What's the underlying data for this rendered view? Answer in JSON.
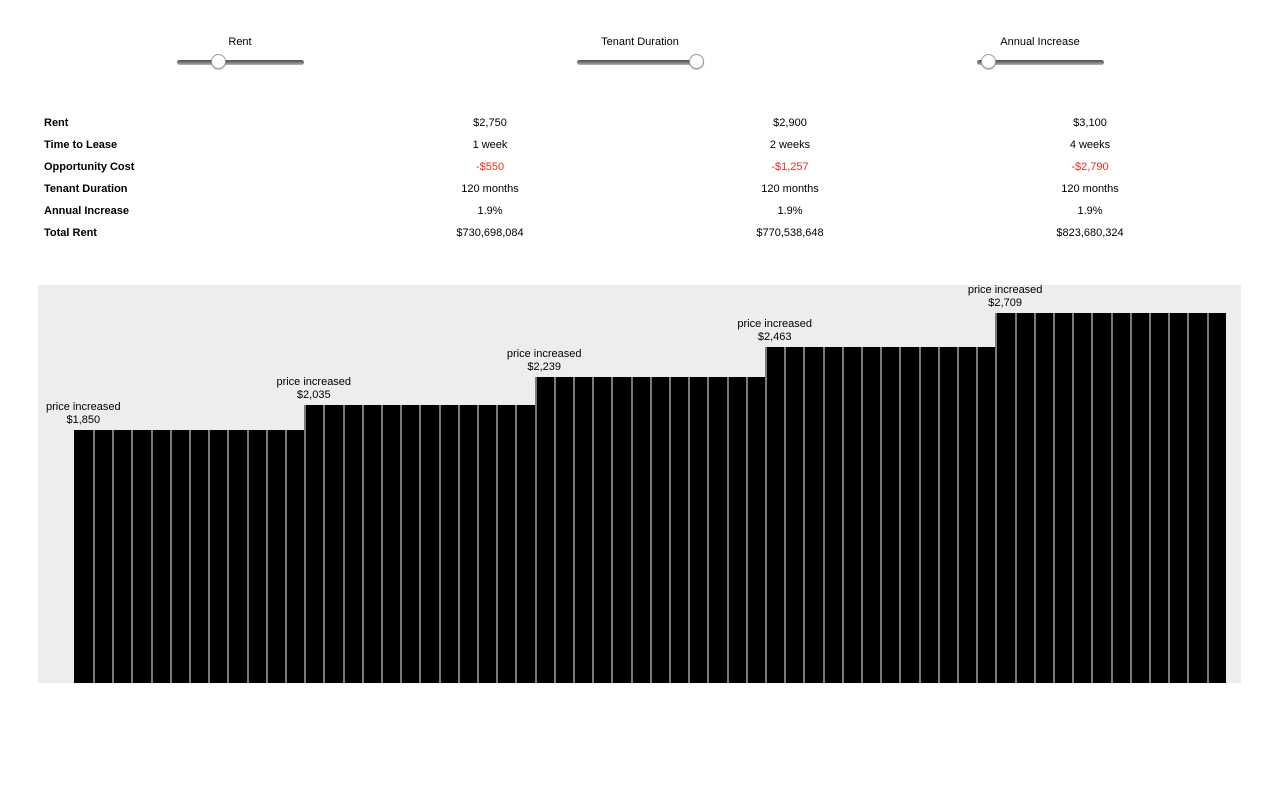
{
  "sliders": [
    {
      "label": "Rent",
      "value": 31
    },
    {
      "label": "Tenant Duration",
      "value": 100
    },
    {
      "label": "Annual Increase",
      "value": 4
    }
  ],
  "table": {
    "rows": [
      {
        "label": "Rent",
        "values": [
          "$2,750",
          "$2,900",
          "$3,100"
        ]
      },
      {
        "label": "Time to Lease",
        "values": [
          "1 week",
          "2 weeks",
          "4 weeks"
        ]
      },
      {
        "label": "Opportunity Cost",
        "values": [
          "-$550",
          "-$1,257",
          "-$2,790"
        ],
        "negative": true
      },
      {
        "label": "Tenant Duration",
        "values": [
          "120 months",
          "120 months",
          "120 months"
        ]
      },
      {
        "label": "Annual Increase",
        "values": [
          "1.9%",
          "1.9%",
          "1.9%"
        ]
      },
      {
        "label": "Total Rent",
        "values": [
          "$730,698,084",
          "$770,538,648",
          "$823,680,324"
        ]
      }
    ]
  },
  "chart_data": {
    "type": "bar",
    "title": "",
    "xlabel": "",
    "ylabel": "",
    "description": "Monthly rent bars over 60 months; rent steps up every 12 months",
    "annotation_label": "price increased",
    "steps": [
      {
        "price_label": "$1,850",
        "value": 1850,
        "months": 12
      },
      {
        "price_label": "$2,035",
        "value": 2035,
        "months": 12
      },
      {
        "price_label": "$2,239",
        "value": 2239,
        "months": 12
      },
      {
        "price_label": "$2,463",
        "value": 2463,
        "months": 12
      },
      {
        "price_label": "$2,709",
        "value": 2709,
        "months": 12
      }
    ],
    "ylim": [
      0,
      2915
    ],
    "grid": false,
    "legend": false
  },
  "colors": {
    "negative": "#f02b1d",
    "bar": "#000000",
    "chart_background": "#ededed"
  }
}
